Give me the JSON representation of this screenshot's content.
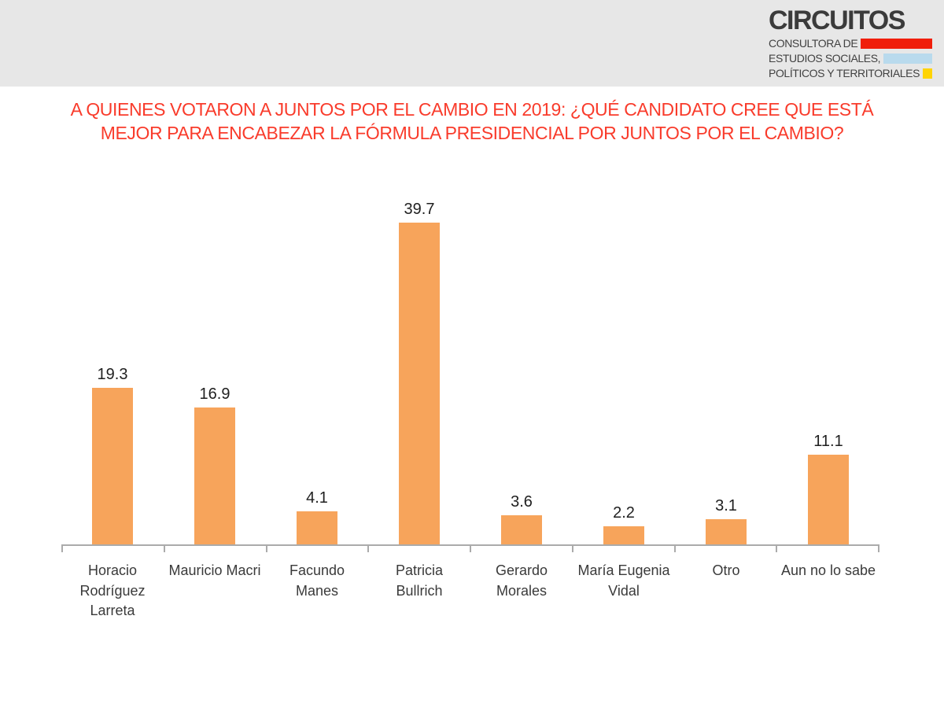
{
  "header": {
    "logo": {
      "title": "CIRCUITOS",
      "lines": [
        {
          "text": "CONSULTORA DE",
          "bar_color": "#f01e0a"
        },
        {
          "text": "ESTUDIOS SOCIALES,",
          "bar_color": "#b9daed"
        },
        {
          "text": "POLÍTICOS Y TERRITORIALES",
          "bar_color": "#ffd403"
        }
      ]
    }
  },
  "heading": {
    "line1": "A QUIENES VOTARON A JUNTOS POR EL CAMBIO EN 2019: ¿QUÉ CANDIDATO CREE QUE ESTÁ",
    "line2": "MEJOR PARA ENCABEZAR LA FÓRMULA PRESIDENCIAL POR JUNTOS POR EL CAMBIO?"
  },
  "chart_data": {
    "type": "bar",
    "title": "A QUIENES VOTARON A JUNTOS POR EL CAMBIO EN 2019: ¿QUÉ CANDIDATO CREE QUE ESTÁ MEJOR PARA ENCABEZAR LA FÓRMULA PRESIDENCIAL POR JUNTOS POR EL CAMBIO?",
    "categories": [
      "Horacio\nRodríguez\nLarreta",
      "Mauricio Macri",
      "Facundo\nManes",
      "Patricia\nBullrich",
      "Gerardo\nMorales",
      "María Eugenia\nVidal",
      "Otro",
      "Aun no lo sabe"
    ],
    "values": [
      19.3,
      16.9,
      4.1,
      39.7,
      3.6,
      2.2,
      3.1,
      11.1
    ],
    "xlabel": "",
    "ylabel": "",
    "ylim": [
      0,
      43
    ],
    "grid": false,
    "legend": false,
    "data_labels": true,
    "bar_color": "#f7a45b",
    "value_label_color": "#1f1f1f",
    "axis_color": "#ababab",
    "title_color": "#f93b2b"
  }
}
